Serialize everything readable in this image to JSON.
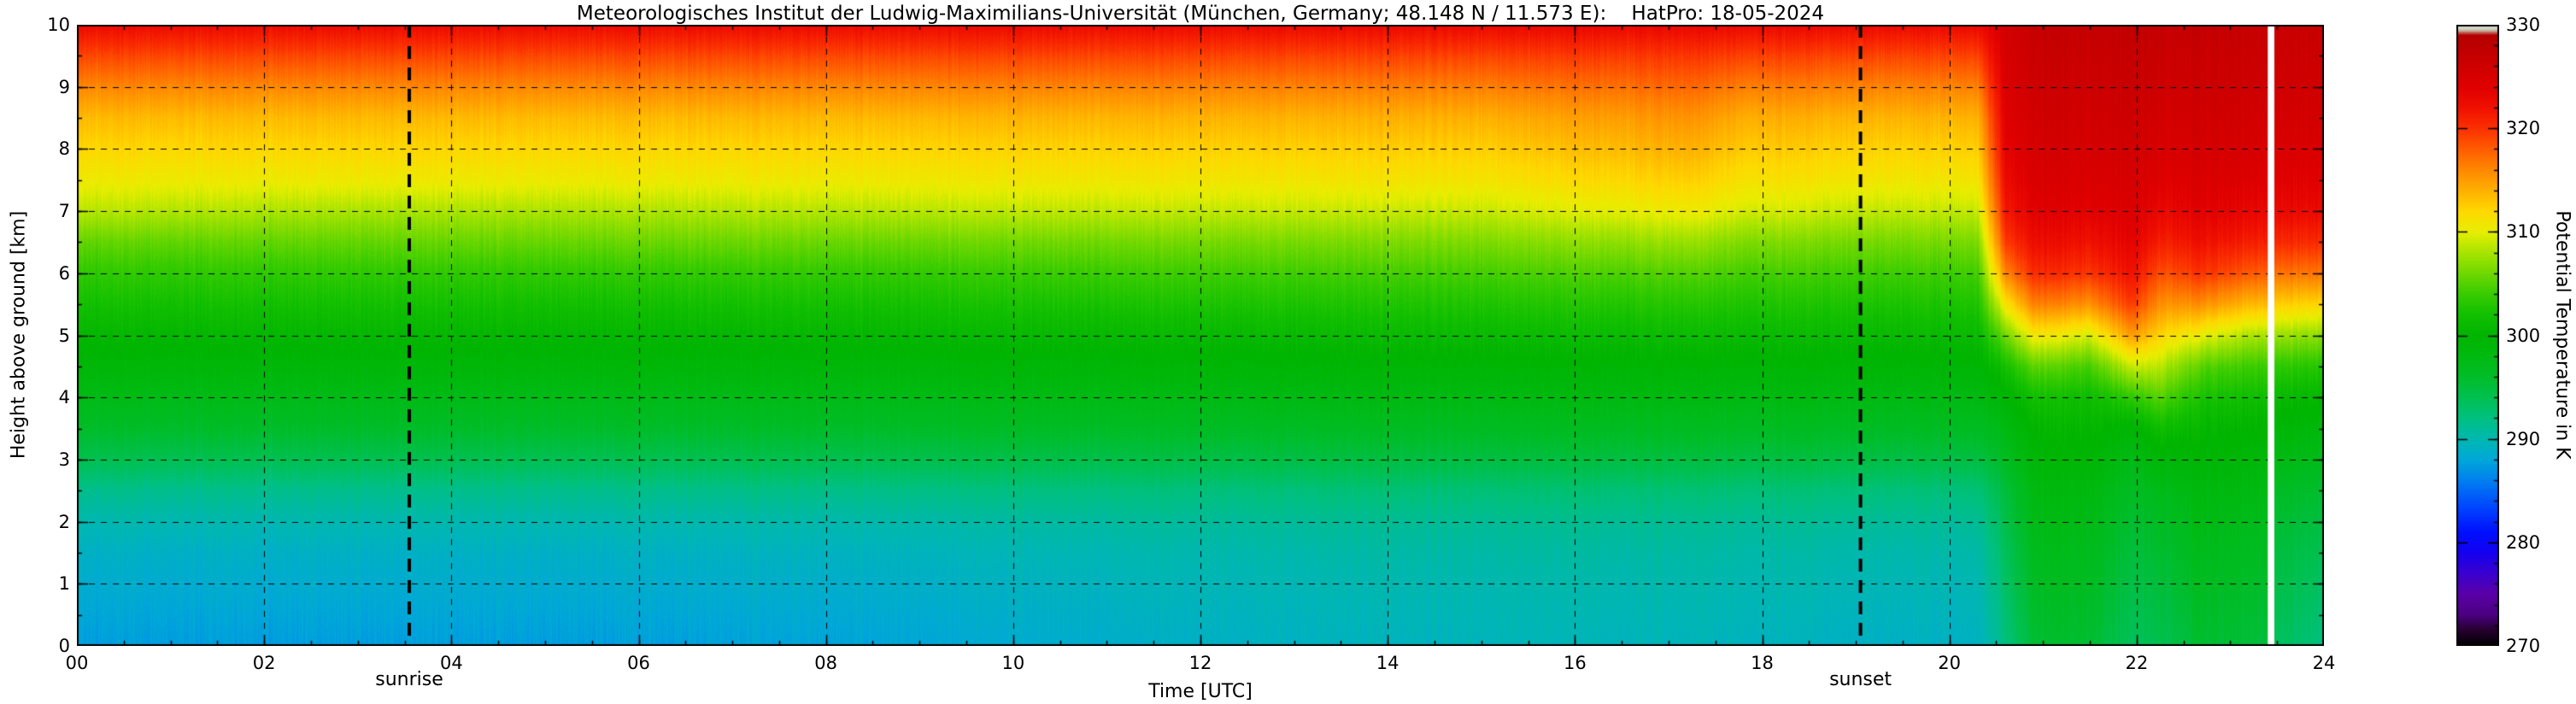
{
  "title": "Meteorologisches Institut der Ludwig-Maximilians-Universität (München, Germany; 48.148 N / 11.573 E):    HatPro: 18-05-2024",
  "axes": {
    "x": {
      "label": "Time [UTC]",
      "min": 0,
      "max": 24,
      "major_ticks": [
        0,
        2,
        4,
        6,
        8,
        10,
        12,
        14,
        16,
        18,
        20,
        22,
        24
      ],
      "tick_labels": [
        "00",
        "02",
        "04",
        "06",
        "08",
        "10",
        "12",
        "14",
        "16",
        "18",
        "20",
        "22",
        "24"
      ],
      "minor_step": 0.5
    },
    "y": {
      "label": "Height above ground [km]",
      "min": 0,
      "max": 10,
      "major_ticks": [
        0,
        1,
        2,
        3,
        4,
        5,
        6,
        7,
        8,
        9,
        10
      ],
      "tick_labels": [
        "0",
        "1",
        "2",
        "3",
        "4",
        "5",
        "6",
        "7",
        "8",
        "9",
        "10"
      ],
      "minor_step": 0.5
    }
  },
  "colorbar": {
    "label": "Potential Temperature in K",
    "min": 270,
    "max": 330,
    "ticks": [
      270,
      280,
      290,
      300,
      310,
      320,
      330
    ],
    "minor_step": 2
  },
  "annotations": {
    "sunrise": {
      "label": "sunrise",
      "time": 3.55
    },
    "sunset": {
      "label": "sunset",
      "time": 19.05
    }
  },
  "chart_data": {
    "type": "heatmap",
    "x_unit": "hours UTC",
    "y_unit": "km above ground",
    "value_unit": "K (potential temperature)",
    "grid": {
      "x_step": 2,
      "y_step": 1,
      "style": "dashed"
    },
    "heights": [
      0,
      0.5,
      1,
      1.5,
      2,
      2.5,
      3,
      3.5,
      4,
      4.5,
      5,
      5.5,
      6,
      6.5,
      7,
      7.5,
      8,
      8.5,
      9,
      9.5,
      10
    ],
    "keyframes": [
      {
        "t": 0.0,
        "theta": [
          287.5,
          288.0,
          288.5,
          289.0,
          290.0,
          291.5,
          294.0,
          296.0,
          297.5,
          299.0,
          300.5,
          302.0,
          303.5,
          305.5,
          308.5,
          310.5,
          312.0,
          313.5,
          316.0,
          319.0,
          322.5
        ]
      },
      {
        "t": 3.0,
        "theta": [
          287.5,
          288.0,
          288.5,
          289.0,
          290.0,
          291.5,
          294.0,
          296.0,
          297.5,
          299.0,
          300.5,
          302.0,
          303.5,
          305.5,
          308.0,
          310.5,
          312.0,
          313.5,
          316.0,
          319.0,
          322.5
        ]
      },
      {
        "t": 6.0,
        "theta": [
          287.6,
          288.1,
          288.6,
          289.1,
          290.1,
          291.6,
          294.0,
          296.0,
          297.5,
          299.0,
          300.5,
          302.0,
          303.6,
          305.8,
          308.2,
          310.5,
          312.0,
          313.5,
          316.0,
          319.0,
          322.5
        ]
      },
      {
        "t": 9.0,
        "theta": [
          288.0,
          288.4,
          288.9,
          289.4,
          290.3,
          291.8,
          294.2,
          296.1,
          297.6,
          299.1,
          300.6,
          302.1,
          303.7,
          305.8,
          308.5,
          310.6,
          312.1,
          313.6,
          316.1,
          319.0,
          322.5
        ]
      },
      {
        "t": 12.0,
        "theta": [
          289.0,
          289.3,
          289.7,
          290.1,
          290.9,
          292.2,
          294.5,
          296.3,
          297.8,
          299.3,
          300.9,
          302.5,
          304.2,
          306.2,
          308.8,
          310.8,
          312.3,
          313.8,
          316.2,
          319.1,
          322.6
        ]
      },
      {
        "t": 15.0,
        "theta": [
          289.5,
          289.8,
          290.1,
          290.5,
          291.2,
          292.5,
          294.8,
          296.5,
          298.0,
          299.5,
          301.1,
          302.7,
          304.5,
          306.5,
          309.0,
          311.0,
          312.5,
          314.0,
          316.4,
          319.2,
          322.7
        ]
      },
      {
        "t": 17.2,
        "theta": [
          289.5,
          289.8,
          290.1,
          290.5,
          291.2,
          292.5,
          294.8,
          296.6,
          298.1,
          299.6,
          301.3,
          303.0,
          305.0,
          307.5,
          310.5,
          312.5,
          314.0,
          315.5,
          317.5,
          319.8,
          322.9
        ]
      },
      {
        "t": 17.8,
        "theta": [
          289.4,
          289.7,
          290.0,
          290.4,
          291.1,
          292.4,
          294.7,
          296.5,
          298.0,
          299.5,
          301.1,
          302.7,
          304.5,
          306.6,
          309.5,
          311.3,
          312.8,
          314.2,
          316.5,
          319.3,
          322.7
        ]
      },
      {
        "t": 19.0,
        "theta": [
          289.0,
          289.4,
          289.8,
          290.2,
          291.0,
          292.3,
          294.6,
          296.4,
          297.9,
          299.4,
          301.0,
          302.5,
          304.2,
          306.2,
          308.8,
          310.8,
          312.3,
          313.8,
          316.2,
          319.1,
          322.6
        ]
      },
      {
        "t": 20.3,
        "theta": [
          289.0,
          289.4,
          289.8,
          290.2,
          291.0,
          292.3,
          294.6,
          296.4,
          297.9,
          299.4,
          301.0,
          302.5,
          304.2,
          306.2,
          308.8,
          310.8,
          312.3,
          313.8,
          316.2,
          319.1,
          322.6
        ]
      },
      {
        "t": 20.6,
        "theta": [
          292.0,
          292.5,
          293.0,
          293.5,
          294.2,
          295.0,
          296.5,
          297.8,
          299.5,
          302.0,
          306.0,
          311.0,
          316.0,
          319.5,
          321.5,
          322.5,
          323.5,
          324.0,
          324.5,
          325.0,
          325.5
        ]
      },
      {
        "t": 20.9,
        "theta": [
          295.5,
          296.0,
          296.5,
          297.0,
          297.6,
          298.2,
          299.2,
          300.4,
          302.0,
          305.5,
          311.0,
          316.5,
          320.5,
          322.5,
          324.0,
          324.8,
          325.3,
          325.8,
          326.2,
          326.6,
          327.0
        ]
      },
      {
        "t": 21.5,
        "theta": [
          295.5,
          296.0,
          296.5,
          297.0,
          297.6,
          298.2,
          299.3,
          300.5,
          301.5,
          304.5,
          309.5,
          315.5,
          319.8,
          322.0,
          323.8,
          324.6,
          325.2,
          325.7,
          326.1,
          326.5,
          327.0
        ]
      },
      {
        "t": 21.95,
        "theta": [
          293.5,
          294.0,
          294.5,
          295.0,
          295.6,
          296.4,
          297.6,
          299.5,
          303.5,
          309.0,
          315.0,
          319.5,
          322.0,
          323.5,
          324.5,
          325.2,
          325.8,
          326.2,
          326.6,
          327.0,
          327.4
        ]
      },
      {
        "t": 22.25,
        "theta": [
          294.0,
          294.5,
          295.0,
          295.6,
          296.3,
          297.2,
          299.0,
          301.5,
          305.0,
          308.5,
          312.0,
          315.5,
          318.5,
          321.0,
          322.8,
          324.0,
          324.8,
          325.4,
          326.0,
          326.5,
          327.0
        ]
      },
      {
        "t": 22.7,
        "theta": [
          295.5,
          296.0,
          296.5,
          297.0,
          297.6,
          298.2,
          299.3,
          300.5,
          302.2,
          305.0,
          310.0,
          315.5,
          319.8,
          322.0,
          323.8,
          324.6,
          325.2,
          325.7,
          326.1,
          326.5,
          327.0
        ]
      },
      {
        "t": 23.2,
        "theta": [
          295.0,
          295.5,
          296.0,
          296.5,
          297.1,
          297.8,
          298.8,
          300.0,
          301.6,
          304.0,
          308.0,
          313.5,
          318.0,
          321.0,
          323.0,
          324.2,
          325.0,
          325.5,
          326.0,
          326.4,
          326.8
        ]
      },
      {
        "t": 23.39,
        "theta": [
          295.0,
          295.5,
          296.0,
          296.5,
          297.1,
          297.8,
          298.8,
          300.0,
          301.6,
          304.0,
          308.0,
          313.5,
          318.0,
          321.0,
          323.0,
          324.2,
          325.0,
          325.5,
          326.0,
          326.4,
          326.8
        ]
      },
      {
        "t": 23.5,
        "theta": [
          293.5,
          294.0,
          294.5,
          295.0,
          295.6,
          296.4,
          297.8,
          299.2,
          301.0,
          303.5,
          307.5,
          312.5,
          317.0,
          320.5,
          322.8,
          324.0,
          324.8,
          325.4,
          325.9,
          326.3,
          326.8
        ]
      },
      {
        "t": 24.0,
        "theta": [
          292.0,
          292.6,
          293.2,
          293.9,
          294.7,
          295.6,
          297.0,
          298.5,
          300.5,
          303.0,
          307.0,
          312.0,
          316.8,
          320.3,
          322.6,
          323.9,
          324.7,
          325.3,
          325.8,
          326.2,
          326.7
        ]
      }
    ],
    "missing_data_stripes": [
      {
        "t0": 23.4,
        "t1": 23.47
      }
    ],
    "colormap": [
      [
        270.0,
        "#000000"
      ],
      [
        271.5,
        "#26002e"
      ],
      [
        273.0,
        "#4b0080"
      ],
      [
        275.0,
        "#5a00a8"
      ],
      [
        277.0,
        "#3a00d0"
      ],
      [
        279.0,
        "#1400f0"
      ],
      [
        281.0,
        "#0010ff"
      ],
      [
        283.5,
        "#0048ff"
      ],
      [
        286.0,
        "#0080f0"
      ],
      [
        288.0,
        "#00a8d8"
      ],
      [
        290.0,
        "#00b8b0"
      ],
      [
        292.0,
        "#00c080"
      ],
      [
        294.0,
        "#00c050"
      ],
      [
        296.0,
        "#00bd28"
      ],
      [
        298.0,
        "#00ba10"
      ],
      [
        300.0,
        "#00b400"
      ],
      [
        302.0,
        "#12c000"
      ],
      [
        304.0,
        "#38cc00"
      ],
      [
        306.0,
        "#70d800"
      ],
      [
        308.0,
        "#a8e400"
      ],
      [
        310.0,
        "#e8ee00"
      ],
      [
        312.0,
        "#ffd800"
      ],
      [
        314.0,
        "#ffb000"
      ],
      [
        316.0,
        "#ff8800"
      ],
      [
        318.0,
        "#ff5c00"
      ],
      [
        320.0,
        "#fb3000"
      ],
      [
        322.0,
        "#f01000"
      ],
      [
        324.0,
        "#e00000"
      ],
      [
        326.0,
        "#cf0000"
      ],
      [
        328.0,
        "#bc0000"
      ],
      [
        329.0,
        "#b40000"
      ],
      [
        329.5,
        "#c8c8b4"
      ],
      [
        330.0,
        "#e8e8e0"
      ]
    ]
  }
}
